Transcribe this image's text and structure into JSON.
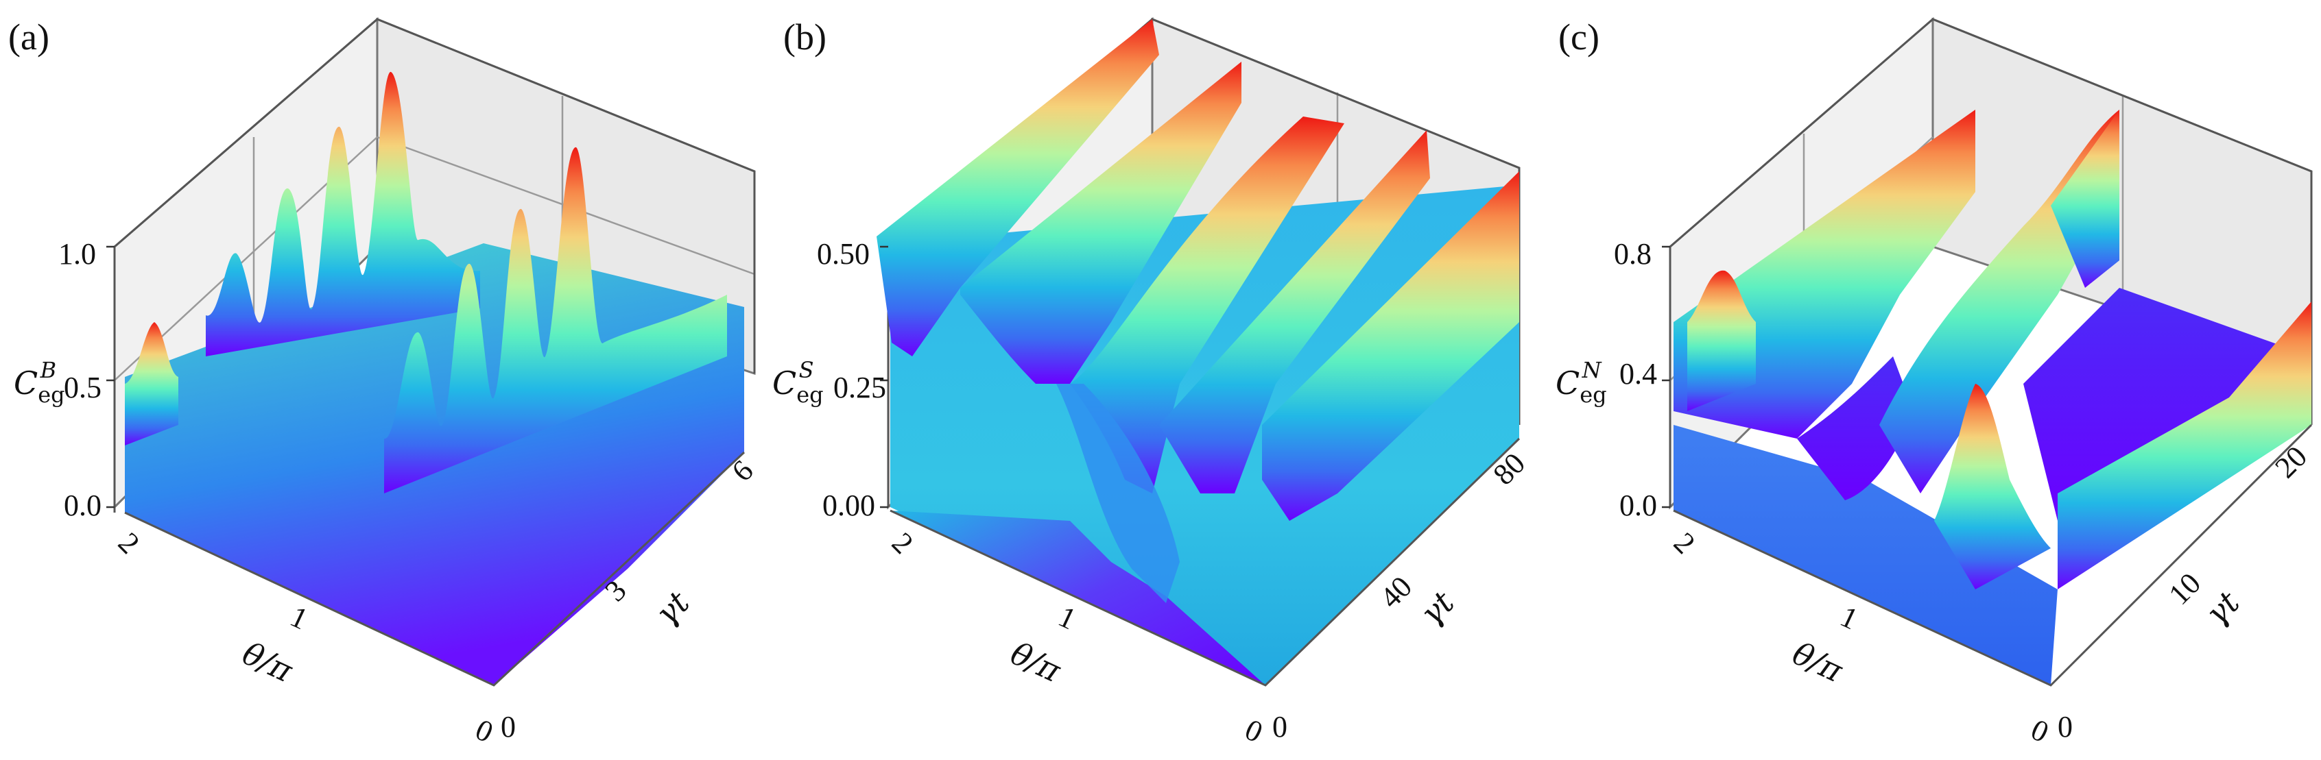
{
  "colormap": [
    "#6a00ff",
    "#3b6bf2",
    "#22b8e6",
    "#5ef0c0",
    "#b6f5a0",
    "#f5d27a",
    "#f7894a",
    "#ee1a14"
  ],
  "chart_data": [
    {
      "type": "surface",
      "panel_label": "(a)",
      "zlabel": "C_eg^B",
      "zlabel_sup": "B",
      "xlabel": "θ/π",
      "ylabel": "γt",
      "xlim": [
        0,
        2
      ],
      "ylim": [
        0,
        6
      ],
      "zlim": [
        0,
        1.0
      ],
      "x_ticks": [
        {
          "value": 2,
          "label": "2"
        },
        {
          "value": 1,
          "label": "1"
        },
        {
          "value": 0,
          "label": "0"
        }
      ],
      "y_ticks": [
        {
          "value": 0,
          "label": "0"
        },
        {
          "value": 3,
          "label": "3"
        },
        {
          "value": 6,
          "label": "6"
        }
      ],
      "z_ticks": [
        {
          "value": 0,
          "label": "0.0"
        },
        {
          "value": 0.5,
          "label": "0.5"
        },
        {
          "value": 1.0,
          "label": "1.0"
        }
      ],
      "ridges": [
        {
          "x": 1.5,
          "peaks_gamma_t": [
            1.0,
            2.4,
            3.8,
            5.2
          ],
          "peak_values": [
            0.85,
            0.9,
            0.93,
            0.97
          ]
        },
        {
          "x": 0.5,
          "peaks_gamma_t": [
            1.0,
            2.4,
            3.8,
            5.2
          ],
          "peak_values": [
            0.7,
            0.85,
            0.9,
            0.95
          ]
        }
      ],
      "baseline_value": 0.5,
      "grid": true
    },
    {
      "type": "surface",
      "panel_label": "(b)",
      "zlabel": "C_eg^S",
      "zlabel_sup": "S",
      "xlabel": "θ/π",
      "ylabel": "γt",
      "xlim": [
        0,
        2
      ],
      "ylim": [
        0,
        80
      ],
      "zlim": [
        0,
        0.5
      ],
      "x_ticks": [
        {
          "value": 2,
          "label": "2"
        },
        {
          "value": 1,
          "label": "1"
        },
        {
          "value": 0,
          "label": "0"
        }
      ],
      "y_ticks": [
        {
          "value": 0,
          "label": "0"
        },
        {
          "value": 40,
          "label": "40"
        },
        {
          "value": 80,
          "label": "80"
        }
      ],
      "z_ticks": [
        {
          "value": 0,
          "label": "0.00"
        },
        {
          "value": 0.25,
          "label": "0.25"
        },
        {
          "value": 0.5,
          "label": "0.50"
        }
      ],
      "ridges": [
        {
          "x": 2.0,
          "value": 0.5
        },
        {
          "x": 1.5,
          "value": 0.5
        },
        {
          "x": 1.0,
          "value": 0.5
        },
        {
          "x": 0.5,
          "value": 0.5
        },
        {
          "x": 0.0,
          "value": 0.5
        }
      ],
      "grid": true
    },
    {
      "type": "surface",
      "panel_label": "(c)",
      "zlabel": "C_eg^N",
      "zlabel_sup": "N",
      "xlabel": "θ/π",
      "ylabel": "γt",
      "xlim": [
        0,
        2
      ],
      "ylim": [
        0,
        20
      ],
      "zlim": [
        0,
        0.8
      ],
      "x_ticks": [
        {
          "value": 2,
          "label": "2"
        },
        {
          "value": 1,
          "label": "1"
        },
        {
          "value": 0,
          "label": "0"
        }
      ],
      "y_ticks": [
        {
          "value": 0,
          "label": "0"
        },
        {
          "value": 10,
          "label": "10"
        },
        {
          "value": 20,
          "label": "20"
        }
      ],
      "z_ticks": [
        {
          "value": 0,
          "label": "0.0"
        },
        {
          "value": 0.4,
          "label": "0.4"
        },
        {
          "value": 0.8,
          "label": "0.8"
        }
      ],
      "ridges": [
        {
          "x": 1.5,
          "peak_gamma_t": 2.0,
          "peak_value": 0.75
        },
        {
          "x": 0.5,
          "peak_gamma_t": 2.0,
          "peak_value": 0.55
        }
      ],
      "grid": true
    }
  ]
}
